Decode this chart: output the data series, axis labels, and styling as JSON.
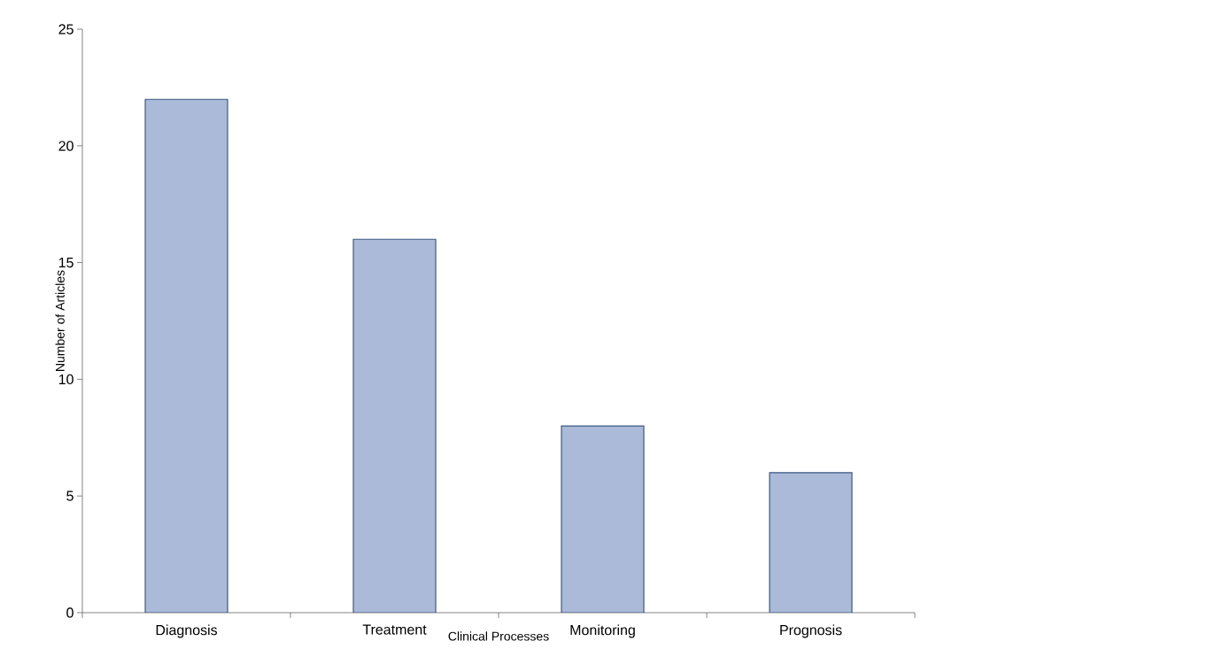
{
  "chart_data": {
    "type": "bar",
    "xlabel": "Clinical Processes",
    "ylabel": "Number of Articles",
    "categories": [
      "Diagnosis",
      "Treatment",
      "Monitoring",
      "Prognosis"
    ],
    "values": [
      22,
      16,
      8,
      6
    ],
    "color": "#abbad9",
    "ylim": [
      0,
      25
    ],
    "yticks": [
      0,
      5,
      10,
      15,
      20,
      25
    ],
    "grid": false
  }
}
